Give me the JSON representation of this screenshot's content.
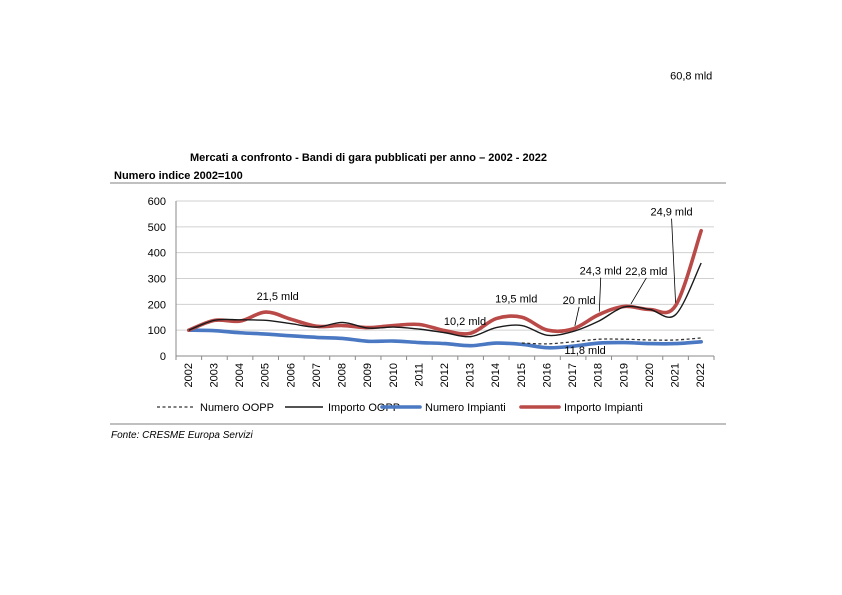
{
  "chart_data": {
    "type": "line",
    "title": "Mercati a confronto - Bandi di gara pubblicati per anno – 2002 - 2022",
    "subtitle": "Numero indice 2002=100",
    "source": "Fonte: CRESME Europa Servizi",
    "x": [
      "2002",
      "2003",
      "2004",
      "2005",
      "2006",
      "2007",
      "2008",
      "2009",
      "2010",
      "2011",
      "2012",
      "2013",
      "2014",
      "2015",
      "2016",
      "2017",
      "2018",
      "2019",
      "2020",
      "2021",
      "2022"
    ],
    "ylim": [
      0,
      600
    ],
    "yticks": [
      0,
      100,
      200,
      300,
      400,
      500,
      600
    ],
    "grid": true,
    "legend_position": "bottom",
    "series": [
      {
        "name": "Numero OOPP",
        "color": "#333333",
        "style": "dashed",
        "values": [
          null,
          null,
          null,
          null,
          null,
          null,
          null,
          null,
          null,
          null,
          null,
          null,
          null,
          50,
          47,
          55,
          65,
          65,
          62,
          62,
          70
        ]
      },
      {
        "name": "Importo OOPP",
        "color": "#1a1a1a",
        "style": "solid",
        "values": [
          100,
          138,
          140,
          138,
          125,
          112,
          130,
          108,
          112,
          104,
          90,
          75,
          110,
          118,
          80,
          95,
          135,
          190,
          180,
          160,
          360
        ]
      },
      {
        "name": "Numero Impianti",
        "color": "#4a78c2",
        "style": "thick",
        "values": [
          100,
          98,
          90,
          85,
          78,
          72,
          68,
          57,
          58,
          52,
          48,
          40,
          50,
          45,
          32,
          38,
          50,
          52,
          48,
          48,
          55
        ]
      },
      {
        "name": "Importo Impianti",
        "color": "#b94a48",
        "style": "thick",
        "values": [
          100,
          138,
          135,
          170,
          142,
          115,
          118,
          110,
          118,
          122,
          98,
          88,
          145,
          150,
          100,
          105,
          160,
          192,
          180,
          195,
          485
        ]
      }
    ],
    "annotations": [
      {
        "text": "21,5 mld",
        "year": "2005"
      },
      {
        "text": "10,2 mld",
        "year": "2012"
      },
      {
        "text": "19,5 mld",
        "year": "2014"
      },
      {
        "text": "11,8 mld",
        "year": "2017"
      },
      {
        "text": "20 mld",
        "year": "2017"
      },
      {
        "text": "24,3 mld",
        "year": "2018"
      },
      {
        "text": "22,8 mld",
        "year": "2019"
      },
      {
        "text": "24,9 mld",
        "year": "2021"
      },
      {
        "text": "60,8 mld",
        "year": "2022"
      }
    ]
  }
}
